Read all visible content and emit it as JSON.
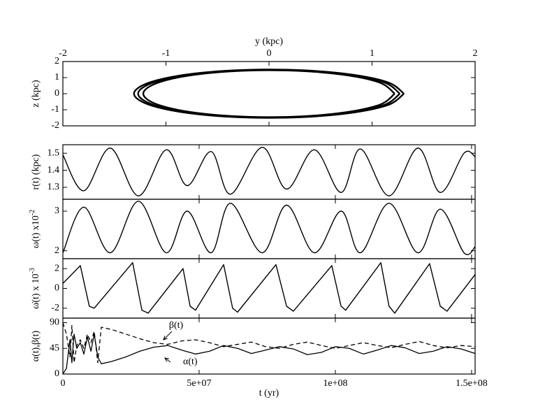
{
  "chart_data": [
    {
      "type": "line",
      "x_label": "y (kpc)",
      "y_label": "z (kpc)",
      "xtick_labels_side": "top",
      "xlim": [
        -2,
        2
      ],
      "ylim": [
        -2,
        2
      ],
      "xticks": [
        -2,
        -1,
        0,
        1,
        2
      ],
      "yticks": [
        -2,
        -1,
        0,
        1,
        2
      ],
      "curve": "smooth",
      "line_width": 2.4,
      "series": [
        {
          "color": "#000000",
          "x": [
            1.22,
            1.057,
            0.61,
            0,
            -0.61,
            -1.057,
            -1.22,
            -1.057,
            -0.61,
            0,
            0.61,
            1.057,
            1.22
          ],
          "values": [
            0,
            0.73,
            1.264,
            1.46,
            1.264,
            0.73,
            0,
            -0.73,
            -1.264,
            -1.46,
            -1.264,
            -0.73,
            0
          ]
        },
        {
          "color": "#000000",
          "x": [
            1.27,
            1.1,
            0.635,
            0,
            -0.635,
            -1.1,
            -1.27,
            -1.1,
            -0.635,
            0,
            0.635,
            1.1,
            1.27
          ],
          "values": [
            0,
            0.74,
            1.282,
            1.48,
            1.282,
            0.74,
            0,
            -0.74,
            -1.282,
            -1.48,
            -1.282,
            -0.74,
            0
          ]
        },
        {
          "color": "#000000",
          "x": [
            1.31,
            1.134,
            0.655,
            0,
            -0.655,
            -1.134,
            -1.31,
            -1.134,
            -0.655,
            0,
            0.655,
            1.134,
            1.31
          ],
          "values": [
            0,
            0.75,
            1.299,
            1.5,
            1.299,
            0.75,
            0,
            -0.75,
            -1.299,
            -1.5,
            -1.299,
            -0.75,
            0
          ]
        }
      ]
    },
    {
      "type": "line",
      "y_label": "r(t) (kpc)",
      "xtick_labels_side": "none",
      "xlim": [
        0,
        151300000.0
      ],
      "ylim": [
        1.23,
        1.55
      ],
      "xticks": [
        0,
        50000000.0,
        100000000.0,
        150000000.0
      ],
      "yticks": [
        1.3,
        1.4,
        1.5
      ],
      "curve": "smooth",
      "line_width": 1.4,
      "x": [
        0,
        7700000.0,
        17400000.0,
        27700000.0,
        37900000.0,
        45600000.0,
        54400000.0,
        61500000.0,
        73100000.0,
        82100000.0,
        92300000.0,
        102100000.0,
        109200000.0,
        119700000.0,
        130300000.0,
        138500000.0,
        147200000.0,
        151300000.0
      ],
      "series": [
        {
          "color": "#000000",
          "values": [
            1.49,
            1.28,
            1.53,
            1.25,
            1.52,
            1.31,
            1.51,
            1.26,
            1.535,
            1.29,
            1.52,
            1.27,
            1.525,
            1.25,
            1.53,
            1.27,
            1.5,
            1.48
          ]
        }
      ]
    },
    {
      "type": "line",
      "y_label": "ω(t) x10",
      "y_label_sup": "-2",
      "xtick_labels_side": "none",
      "xlim": [
        0,
        151300000.0
      ],
      "ylim": [
        1.8,
        3.3
      ],
      "xticks": [
        0,
        50000000.0,
        100000000.0,
        150000000.0
      ],
      "yticks": [
        2,
        3
      ],
      "curve": "smooth",
      "line_width": 1.4,
      "x": [
        0,
        7700000.0,
        17400000.0,
        27700000.0,
        37900000.0,
        45600000.0,
        54400000.0,
        61500000.0,
        73100000.0,
        82100000.0,
        92300000.0,
        102100000.0,
        109200000.0,
        119700000.0,
        130300000.0,
        138500000.0,
        147200000.0,
        151300000.0
      ],
      "series": [
        {
          "color": "#000000",
          "values": [
            1.95,
            3.1,
            1.95,
            3.25,
            1.95,
            3.0,
            1.95,
            3.2,
            1.95,
            3.15,
            1.95,
            3.0,
            1.95,
            3.2,
            1.95,
            3.05,
            1.95,
            2.1
          ]
        }
      ]
    },
    {
      "type": "line",
      "y_label": "ω̇(t) x 10",
      "y_label_sup": "-3",
      "xtick_labels_side": "none",
      "xlim": [
        0,
        151300000.0
      ],
      "ylim": [
        -3,
        3
      ],
      "xticks": [
        0,
        50000000.0,
        100000000.0,
        150000000.0
      ],
      "yticks": [
        -2,
        0,
        2
      ],
      "curve": "linear",
      "line_width": 1.4,
      "x": [
        0,
        6400000.0,
        9700000.0,
        11500000.0,
        25600000.0,
        29000000.0,
        31300000.0,
        44100000.0,
        46700000.0,
        48700000.0,
        59000000.0,
        62300000.0,
        64100000.0,
        78200000.0,
        82100000.0,
        84600000.0,
        98700000.0,
        102100000.0,
        103800000.0,
        116700000.0,
        119700000.0,
        121800000.0,
        134600000.0,
        138500000.0,
        141000000.0,
        151300000.0
      ],
      "series": [
        {
          "color": "#000000",
          "values": [
            0.5,
            2.3,
            -1.8,
            -2.0,
            2.6,
            -2.2,
            -2.5,
            2.0,
            -1.8,
            -2.2,
            2.4,
            -2.0,
            -2.4,
            2.4,
            -1.8,
            -2.3,
            2.3,
            -1.8,
            -2.2,
            2.6,
            -1.8,
            -2.5,
            2.5,
            -1.8,
            -2.3,
            1.4
          ]
        }
      ]
    },
    {
      "type": "line",
      "y_label": "α(t),β(t)",
      "x_label": "t (yr)",
      "xtick_labels_side": "bottom",
      "xlim": [
        0,
        151300000.0
      ],
      "ylim": [
        0,
        98
      ],
      "xticks": [
        0,
        {
          "value": 50000000.0,
          "label": "5e+07"
        },
        {
          "value": 100000000.0,
          "label": "1e+08"
        },
        {
          "value": 150000000.0,
          "label": "1.5e+08"
        }
      ],
      "yticks": [
        0,
        45,
        90
      ],
      "curve": "linear",
      "line_width": 1.3,
      "annotations": [
        "β(t)",
        "α(t)"
      ],
      "x": [
        0,
        1300000.0,
        2600000.0,
        3300000.0,
        4100000.0,
        5100000.0,
        6400000.0,
        7700000.0,
        9000000.0,
        10300000.0,
        11500000.0,
        12800000.0,
        14100000.0,
        17900000.0,
        23100000.0,
        28200000.0,
        33300000.0,
        38500000.0,
        43600000.0,
        48700000.0,
        53800000.0,
        59000000.0,
        64100000.0,
        69200000.0,
        74400000.0,
        79500000.0,
        84600000.0,
        89700000.0,
        94900000.0,
        100000000.0,
        105100000.0,
        110300000.0,
        115400000.0,
        120500000.0,
        125600000.0,
        130800000.0,
        135900000.0,
        141000000.0,
        146200000.0,
        151300000.0
      ],
      "series": [
        {
          "color": "#000000",
          "dashed": false,
          "values": [
            0,
            10,
            60,
            20,
            70,
            45,
            55,
            35,
            65,
            40,
            70,
            30,
            18,
            22,
            30,
            40,
            47,
            50,
            42,
            35,
            40,
            50,
            45,
            36,
            42,
            48,
            44,
            34,
            38,
            48,
            45,
            35,
            42,
            50,
            46,
            36,
            40,
            48,
            44,
            36
          ]
        },
        {
          "color": "#000000",
          "dashed": true,
          "values": [
            90,
            70,
            30,
            85,
            20,
            50,
            60,
            45,
            70,
            55,
            75,
            20,
            82,
            78,
            70,
            62,
            55,
            52,
            58,
            60,
            55,
            48,
            52,
            56,
            48,
            45,
            52,
            56,
            50,
            45,
            50,
            55,
            50,
            46,
            52,
            57,
            50,
            46,
            50,
            48
          ]
        }
      ]
    }
  ]
}
